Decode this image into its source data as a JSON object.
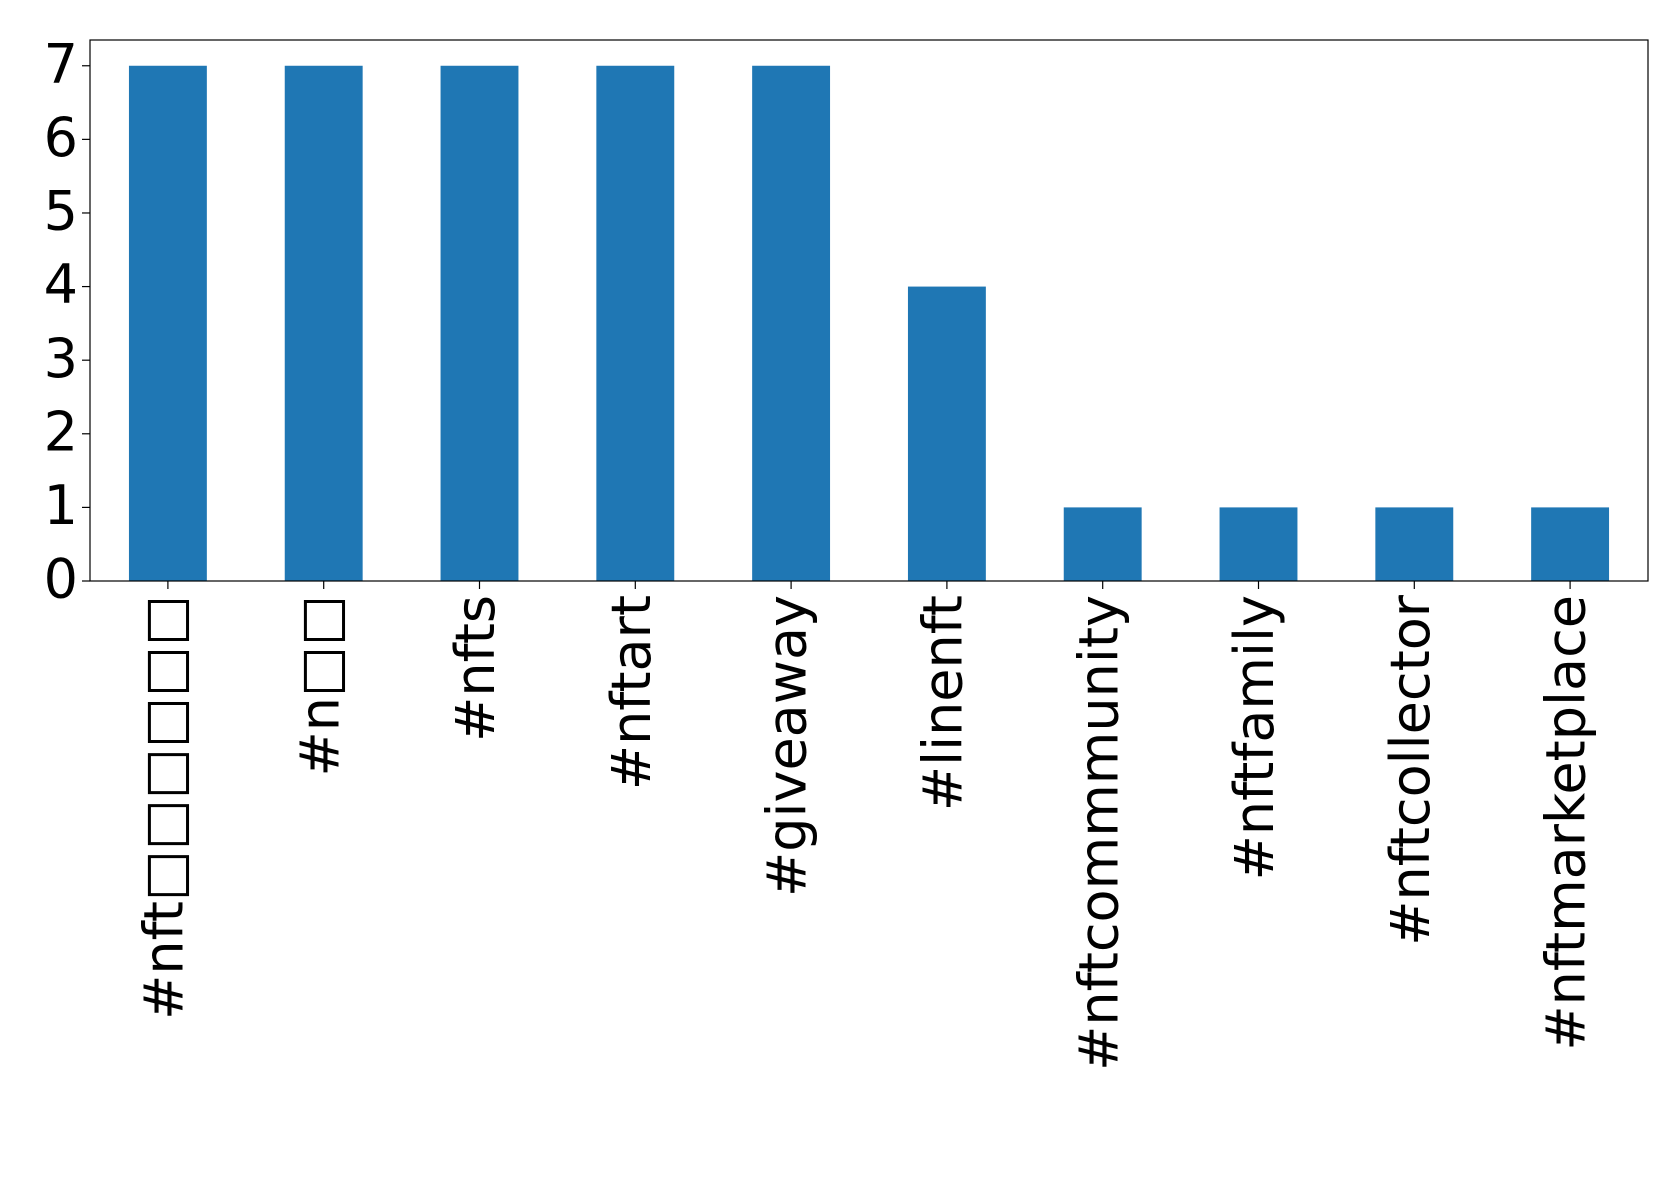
{
  "chart_data": {
    "type": "bar",
    "categories": [
      "#nft□□□□□□",
      "#n□□",
      "#nfts",
      "#nftart",
      "#giveaway",
      "#linenft",
      "#nftcommmunity",
      "#nftfamily",
      "#nftcollector",
      "#nftmarketplace"
    ],
    "values": [
      7,
      7,
      7,
      7,
      7,
      4,
      1,
      1,
      1,
      1
    ],
    "color": "#1f77b4",
    "ylim": [
      0,
      7.35
    ],
    "yticks": [
      0,
      1,
      2,
      3,
      4,
      5,
      6,
      7
    ],
    "grid": false
  }
}
